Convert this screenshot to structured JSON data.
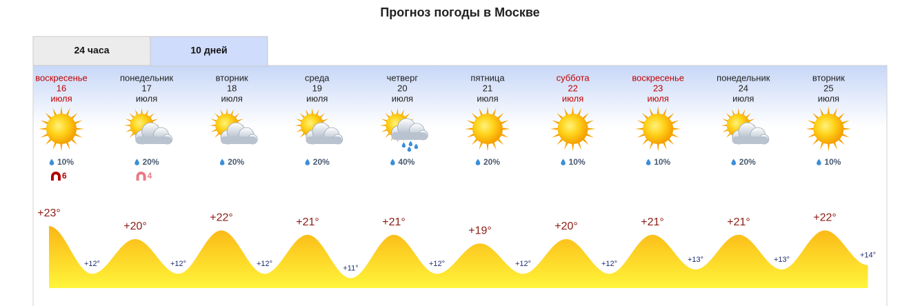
{
  "header": {
    "title": "Прогноз погоды в Москве"
  },
  "tabs": [
    {
      "label": "24 часа",
      "active": false
    },
    {
      "label": "10 дней",
      "active": true
    }
  ],
  "days": [
    {
      "weekday": "воскресенье",
      "date": "16",
      "month": "июля",
      "weekend": true,
      "sky": "sunny",
      "precip": "10%",
      "magnet": 6,
      "high": {
        "value": 23,
        "label": "+23°"
      },
      "low": {
        "value": 12,
        "label": "+12°"
      }
    },
    {
      "weekday": "понедельник",
      "date": "17",
      "month": "июля",
      "weekend": false,
      "sky": "partly-cloudy",
      "precip": "20%",
      "magnet": 4,
      "high": {
        "value": 20,
        "label": "+20°"
      },
      "low": {
        "value": 12,
        "label": "+12°"
      }
    },
    {
      "weekday": "вторник",
      "date": "18",
      "month": "июля",
      "weekend": false,
      "sky": "partly-cloudy",
      "precip": "20%",
      "high": {
        "value": 22,
        "label": "+22°"
      },
      "low": {
        "value": 12,
        "label": "+12°"
      }
    },
    {
      "weekday": "среда",
      "date": "19",
      "month": "июля",
      "weekend": false,
      "sky": "partly-cloudy",
      "precip": "20%",
      "high": {
        "value": 21,
        "label": "+21°"
      },
      "low": {
        "value": 11,
        "label": "+11°"
      }
    },
    {
      "weekday": "четверг",
      "date": "20",
      "month": "июля",
      "weekend": false,
      "sky": "rain",
      "precip": "40%",
      "high": {
        "value": 21,
        "label": "+21°"
      },
      "low": {
        "value": 12,
        "label": "+12°"
      }
    },
    {
      "weekday": "пятница",
      "date": "21",
      "month": "июля",
      "weekend": false,
      "sky": "sunny",
      "precip": "20%",
      "high": {
        "value": 19,
        "label": "+19°"
      },
      "low": {
        "value": 12,
        "label": "+12°"
      }
    },
    {
      "weekday": "суббота",
      "date": "22",
      "month": "июля",
      "weekend": true,
      "sky": "sunny",
      "precip": "10%",
      "high": {
        "value": 20,
        "label": "+20°"
      },
      "low": {
        "value": 12,
        "label": "+12°"
      }
    },
    {
      "weekday": "воскресенье",
      "date": "23",
      "month": "июля",
      "weekend": true,
      "sky": "sunny",
      "precip": "10%",
      "high": {
        "value": 21,
        "label": "+21°"
      },
      "low": {
        "value": 13,
        "label": "+13°"
      }
    },
    {
      "weekday": "понедельник",
      "date": "24",
      "month": "июля",
      "weekend": false,
      "sky": "partly-cloudy",
      "precip": "20%",
      "high": {
        "value": 21,
        "label": "+21°"
      },
      "low": {
        "value": 13,
        "label": "+13°"
      }
    },
    {
      "weekday": "вторник",
      "date": "25",
      "month": "июля",
      "weekend": false,
      "sky": "sunny",
      "precip": "10%",
      "high": {
        "value": 22,
        "label": "+22°"
      },
      "low": {
        "value": 14,
        "label": "+14°"
      }
    }
  ]
}
